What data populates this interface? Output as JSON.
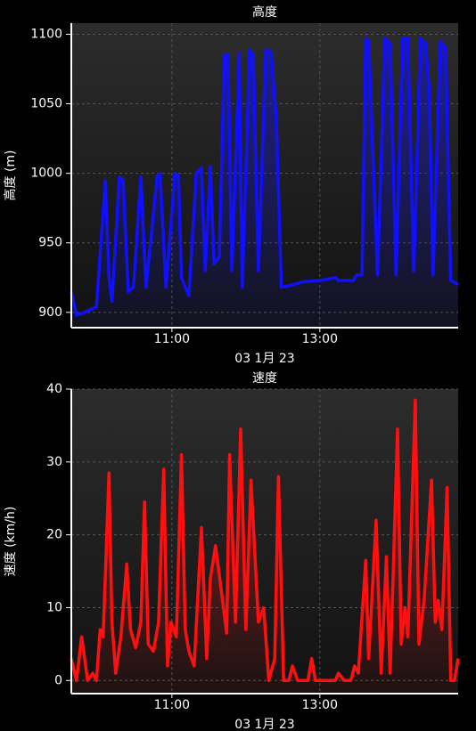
{
  "chart_data": [
    {
      "type": "line",
      "title": "高度",
      "y_label": "高度 (m)",
      "x_label": "03 1月 23",
      "x": [
        9.64,
        9.71,
        9.82,
        9.98,
        10.1,
        10.15,
        10.19,
        10.29,
        10.34,
        10.41,
        10.48,
        10.58,
        10.65,
        10.8,
        10.84,
        10.92,
        11.04,
        11.09,
        11.13,
        11.23,
        11.33,
        11.4,
        11.45,
        11.52,
        11.57,
        11.64,
        11.71,
        11.76,
        11.81,
        11.91,
        11.95,
        12.05,
        12.1,
        12.17,
        12.27,
        12.34,
        12.41,
        12.48,
        12.65,
        12.77,
        13.01,
        13.21,
        13.25,
        13.45,
        13.5,
        13.57,
        13.62,
        13.66,
        13.78,
        13.88,
        13.95,
        14.03,
        14.12,
        14.19,
        14.27,
        14.36,
        14.43,
        14.48,
        14.53,
        14.63,
        14.7,
        14.77,
        14.87
      ],
      "series": [
        {
          "color": "#1010ff",
          "values": [
            915,
            898,
            900,
            904,
            995,
            925,
            908,
            997,
            995,
            915,
            918,
            997,
            918,
            998,
            1000,
            918,
            1000,
            998,
            925,
            912,
            1000,
            1004,
            930,
            1005,
            935,
            940,
            1085,
            1085,
            930,
            1087,
            918,
            1089,
            1085,
            930,
            1089,
            1087,
            1040,
            918,
            920,
            922,
            923,
            925,
            923,
            923,
            927,
            927,
            1097,
            1095,
            927,
            1097,
            1093,
            927,
            1097,
            1097,
            930,
            1097,
            1093,
            1060,
            927,
            1095,
            1090,
            923,
            920
          ]
        }
      ],
      "xlim": [
        9.64,
        14.87
      ],
      "xticks": [
        {
          "value": 11,
          "label": "11:00"
        },
        {
          "value": 13,
          "label": "13:00"
        }
      ],
      "ylim": [
        889,
        1108
      ],
      "yticks": [
        900,
        950,
        1000,
        1050,
        1100
      ],
      "grid": true
    },
    {
      "type": "line",
      "title": "速度",
      "y_label": "速度 (km/h)",
      "x_label": "03 1月 23",
      "x": [
        9.64,
        9.71,
        9.78,
        9.86,
        9.93,
        9.98,
        10.03,
        10.07,
        10.15,
        10.19,
        10.24,
        10.31,
        10.39,
        10.44,
        10.51,
        10.58,
        10.63,
        10.68,
        10.75,
        10.82,
        10.89,
        10.94,
        10.99,
        11.06,
        11.13,
        11.18,
        11.23,
        11.3,
        11.4,
        11.47,
        11.52,
        11.59,
        11.66,
        11.74,
        11.78,
        11.86,
        11.93,
        12.0,
        12.07,
        12.17,
        12.24,
        12.31,
        12.39,
        12.44,
        12.51,
        12.58,
        12.63,
        12.7,
        12.84,
        12.89,
        12.94,
        13.01,
        13.21,
        13.25,
        13.33,
        13.42,
        13.47,
        13.52,
        13.62,
        13.66,
        13.76,
        13.83,
        13.9,
        13.95,
        14.05,
        14.1,
        14.15,
        14.19,
        14.29,
        14.34,
        14.41,
        14.51,
        14.56,
        14.6,
        14.65,
        14.72,
        14.77,
        14.82,
        14.87
      ],
      "series": [
        {
          "color": "#ff1010",
          "values": [
            3,
            0,
            6,
            0,
            1,
            0,
            7,
            6,
            28.5,
            8,
            1,
            6,
            16,
            7,
            4.5,
            8,
            24.5,
            5,
            4,
            8,
            29,
            2,
            8,
            6,
            31,
            7,
            4,
            2,
            21,
            3,
            14,
            18.5,
            13,
            6.5,
            31,
            8,
            34.5,
            7,
            27.5,
            8,
            10,
            0,
            3,
            28,
            0,
            0,
            2,
            0,
            0,
            3,
            0,
            0,
            0,
            1,
            0,
            0,
            2,
            1,
            16.5,
            3,
            22,
            1,
            17,
            1,
            34.5,
            5,
            10,
            6,
            38.5,
            5,
            11,
            27.5,
            8,
            11,
            7,
            26.5,
            0,
            0,
            3
          ]
        }
      ],
      "xlim": [
        9.64,
        14.87
      ],
      "xticks": [
        {
          "value": 11,
          "label": "11:00"
        },
        {
          "value": 13,
          "label": "13:00"
        }
      ],
      "ylim": [
        -1.8,
        40
      ],
      "yticks": [
        0,
        10,
        20,
        30,
        40
      ],
      "grid": true
    }
  ]
}
